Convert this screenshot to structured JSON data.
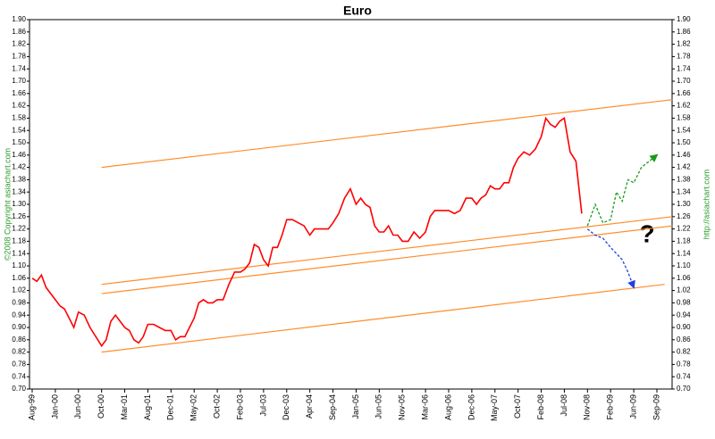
{
  "chart_data": {
    "type": "line",
    "title": "Euro",
    "credit_left": "©2008 Copyright asiachart.com",
    "credit_right": "http://asiachart.com",
    "annotation": "?",
    "ylim": [
      0.7,
      1.9
    ],
    "y2lim": [
      0.7,
      1.9
    ],
    "yticks": [
      {
        "value": 0.7,
        "label": "0.70"
      },
      0.74,
      0.78,
      0.82,
      0.86,
      {
        "value": 0.9,
        "label": "0.90"
      },
      0.94,
      0.98,
      1.02,
      1.06,
      {
        "value": 1.1,
        "label": "1.10"
      },
      1.14,
      1.18,
      1.22,
      1.26,
      {
        "value": 1.3,
        "label": "1.30"
      },
      1.34,
      1.38,
      1.42,
      1.46,
      {
        "value": 1.5,
        "label": "1.50"
      },
      1.54,
      1.58,
      1.62,
      1.66,
      {
        "value": 1.7,
        "label": "1.70"
      },
      1.74,
      1.78,
      1.82,
      1.86,
      {
        "value": 1.9,
        "label": "1.90"
      }
    ],
    "y2ticks": [
      {
        "value": 0.7,
        "label": "0.70"
      },
      0.74,
      0.78,
      0.82,
      0.86,
      {
        "value": 0.9,
        "label": "0.90"
      },
      0.94,
      0.98,
      1.02,
      1.06,
      {
        "value": 1.1,
        "label": "1.10"
      },
      1.14,
      1.18,
      1.22,
      1.26,
      {
        "value": 1.3,
        "label": "1.30"
      },
      1.34,
      1.38,
      1.42,
      1.46,
      {
        "value": 1.5,
        "label": "1.50"
      },
      1.54,
      1.58,
      1.62,
      1.66,
      {
        "value": 1.7,
        "label": "1.70"
      },
      1.74,
      1.78,
      1.82,
      1.86,
      {
        "value": 1.9,
        "label": "1.90"
      }
    ],
    "xticks": [
      {
        "value": "1999-08",
        "label": "Aug-99"
      },
      {
        "value": "2000-01",
        "label": "Jan-00"
      },
      {
        "value": "2000-06",
        "label": "Jun-00"
      },
      {
        "value": "2000-10",
        "label": "Oct-00"
      },
      {
        "value": "2001-03",
        "label": "Mar-01"
      },
      {
        "value": "2001-08",
        "label": "Aug-01"
      },
      {
        "value": "2001-12",
        "label": "Dec-01"
      },
      {
        "value": "2002-05",
        "label": "May-02"
      },
      {
        "value": "2002-10",
        "label": "Oct-02"
      },
      {
        "value": "2003-02",
        "label": "Feb-03"
      },
      {
        "value": "2003-07",
        "label": "Jul-03"
      },
      {
        "value": "2003-12",
        "label": "Dec-03"
      },
      {
        "value": "2004-04",
        "label": "Apr-04"
      },
      {
        "value": "2004-09",
        "label": "Sep-04"
      },
      {
        "value": "2005-01",
        "label": "Jan-05"
      },
      {
        "value": "2005-06",
        "label": "Jun-05"
      },
      {
        "value": "2005-11",
        "label": "Nov-05"
      },
      {
        "value": "2006-03",
        "label": "Mar-06"
      },
      {
        "value": "2006-08",
        "label": "Aug-06"
      },
      {
        "value": "2006-12",
        "label": "Dec-06"
      },
      {
        "value": "2007-05",
        "label": "May-07"
      },
      {
        "value": "2007-10",
        "label": "Oct-07"
      },
      {
        "value": "2008-02",
        "label": "Feb-08"
      },
      {
        "value": "2008-07",
        "label": "Jul-08"
      },
      {
        "value": "2008-11",
        "label": "Nov-08"
      },
      {
        "value": "2009-02",
        "label": "Feb-09"
      },
      {
        "value": "2009-06",
        "label": "Jun-09"
      },
      {
        "value": "2009-09",
        "label": "Sep-09"
      }
    ],
    "series": [
      {
        "color": "#ff0000",
        "dashed": false,
        "x": [
          "1999-08",
          "1999-09",
          "1999-10",
          "1999-11",
          "1999-12",
          "2000-01",
          "2000-02",
          "2000-03",
          "2000-04",
          "2000-05",
          "2000-06",
          "2000-07",
          "2000-08",
          "2000-09",
          "2000-10",
          "2000-11",
          "2000-12",
          "2001-01",
          "2001-02",
          "2001-03",
          "2001-04",
          "2001-05",
          "2001-06",
          "2001-07",
          "2001-08",
          "2001-09",
          "2001-10",
          "2001-11",
          "2001-12",
          "2002-01",
          "2002-02",
          "2002-03",
          "2002-04",
          "2002-05",
          "2002-06",
          "2002-07",
          "2002-08",
          "2002-09",
          "2002-10",
          "2002-11",
          "2002-12",
          "2003-01",
          "2003-02",
          "2003-03",
          "2003-04",
          "2003-05",
          "2003-06",
          "2003-07",
          "2003-08",
          "2003-09",
          "2003-10",
          "2003-11",
          "2003-12",
          "2004-01",
          "2004-02",
          "2004-03",
          "2004-04",
          "2004-05",
          "2004-06",
          "2004-07",
          "2004-08",
          "2004-09",
          "2004-10",
          "2004-11",
          "2004-12",
          "2005-01",
          "2005-02",
          "2005-03",
          "2005-04",
          "2005-05",
          "2005-06",
          "2005-07",
          "2005-08",
          "2005-09",
          "2005-10",
          "2005-11",
          "2005-12",
          "2006-01",
          "2006-02",
          "2006-03",
          "2006-04",
          "2006-05",
          "2006-06",
          "2006-07",
          "2006-08",
          "2006-09",
          "2006-10",
          "2006-11",
          "2006-12",
          "2007-01",
          "2007-02",
          "2007-03",
          "2007-04",
          "2007-05",
          "2007-06",
          "2007-07",
          "2007-08",
          "2007-09",
          "2007-10",
          "2007-11",
          "2007-12",
          "2008-01",
          "2008-02",
          "2008-03",
          "2008-04",
          "2008-05",
          "2008-06",
          "2008-07",
          "2008-08",
          "2008-09",
          "2008-10"
        ],
        "values": [
          1.06,
          1.05,
          1.07,
          1.03,
          1.01,
          0.99,
          0.97,
          0.96,
          0.93,
          0.9,
          0.95,
          0.94,
          0.9,
          0.87,
          0.84,
          0.86,
          0.92,
          0.94,
          0.92,
          0.9,
          0.89,
          0.86,
          0.85,
          0.87,
          0.91,
          0.91,
          0.9,
          0.89,
          0.89,
          0.86,
          0.87,
          0.87,
          0.9,
          0.93,
          0.98,
          0.99,
          0.98,
          0.98,
          0.99,
          0.99,
          1.04,
          1.08,
          1.08,
          1.09,
          1.11,
          1.17,
          1.16,
          1.12,
          1.1,
          1.16,
          1.16,
          1.2,
          1.25,
          1.25,
          1.24,
          1.23,
          1.2,
          1.22,
          1.22,
          1.22,
          1.22,
          1.24,
          1.27,
          1.32,
          1.35,
          1.3,
          1.32,
          1.3,
          1.29,
          1.23,
          1.21,
          1.21,
          1.23,
          1.2,
          1.2,
          1.18,
          1.18,
          1.21,
          1.19,
          1.21,
          1.26,
          1.28,
          1.28,
          1.28,
          1.28,
          1.27,
          1.28,
          1.32,
          1.32,
          1.3,
          1.32,
          1.33,
          1.36,
          1.35,
          1.35,
          1.37,
          1.37,
          1.42,
          1.45,
          1.47,
          1.46,
          1.48,
          1.52,
          1.58,
          1.56,
          1.55,
          1.57,
          1.58,
          1.47,
          1.44,
          1.27
        ]
      },
      {
        "color": "#1a9a1a",
        "dashed": true,
        "x": [
          "2008-11",
          "2008-12",
          "2009-01",
          "2009-02",
          "2009-03",
          "2009-04",
          "2009-05",
          "2009-06",
          "2009-07",
          "2009-08",
          "2009-09"
        ],
        "values": [
          1.23,
          1.3,
          1.24,
          1.25,
          1.34,
          1.31,
          1.38,
          1.37,
          1.42,
          1.44,
          1.46
        ]
      },
      {
        "color": "#2040e0",
        "dashed": true,
        "x": [
          "2008-11",
          "2008-12",
          "2009-01",
          "2009-02",
          "2009-03",
          "2009-04",
          "2009-05",
          "2009-06"
        ],
        "values": [
          1.22,
          1.2,
          1.19,
          1.16,
          1.14,
          1.12,
          1.08,
          1.03
        ]
      }
    ],
    "trendlines": [
      {
        "color": "#ff8c2a",
        "x": [
          "2000-10",
          "2009-11"
        ],
        "y": [
          1.42,
          1.64
        ]
      },
      {
        "color": "#ff8c2a",
        "x": [
          "2000-10",
          "2009-11"
        ],
        "y": [
          1.04,
          1.26
        ]
      },
      {
        "color": "#ff8c2a",
        "x": [
          "2000-10",
          "2009-11"
        ],
        "y": [
          1.01,
          1.23
        ]
      },
      {
        "color": "#ff8c2a",
        "x": [
          "2000-10",
          "2009-10"
        ],
        "y": [
          0.82,
          1.04
        ]
      }
    ]
  }
}
